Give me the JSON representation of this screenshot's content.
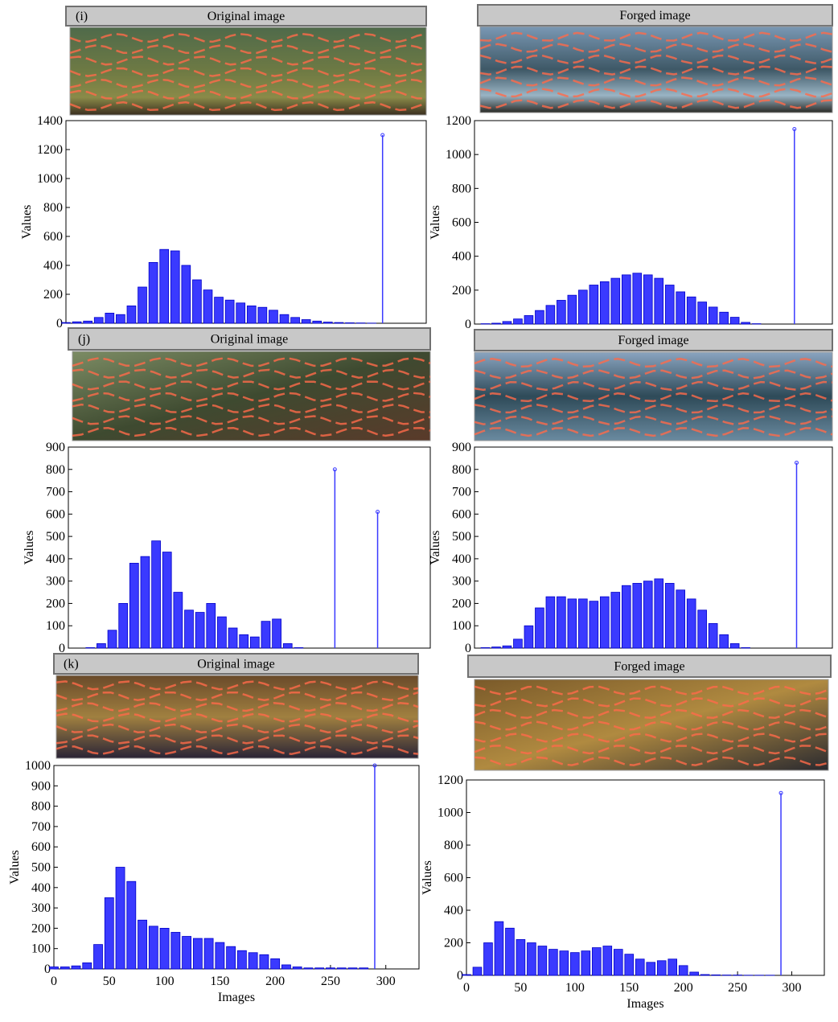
{
  "chart_data": [
    {
      "type": "bar",
      "panel_label": "(i)",
      "title": "Original image",
      "y_label": "Values",
      "xlim": [
        0,
        330
      ],
      "ylim": [
        0,
        1400
      ],
      "yticks": [
        0,
        200,
        400,
        600,
        800,
        1000,
        1200,
        1400
      ],
      "x": [
        0,
        10,
        20,
        30,
        40,
        50,
        60,
        70,
        80,
        90,
        100,
        110,
        120,
        130,
        140,
        150,
        160,
        170,
        180,
        190,
        200,
        210,
        220,
        230,
        240,
        250,
        260,
        270,
        280
      ],
      "values": [
        5,
        10,
        15,
        40,
        70,
        60,
        120,
        250,
        420,
        510,
        500,
        400,
        300,
        230,
        180,
        160,
        140,
        120,
        110,
        90,
        60,
        40,
        25,
        15,
        8,
        5,
        3,
        2,
        1
      ],
      "spike_x": [
        290
      ],
      "spike_values": [
        1300
      ],
      "color": "#3a3aff"
    },
    {
      "type": "bar",
      "title": "Forged image",
      "y_label": "Values",
      "xlim": [
        0,
        330
      ],
      "ylim": [
        0,
        1200
      ],
      "yticks": [
        0,
        200,
        400,
        600,
        800,
        1000,
        1200
      ],
      "x": [
        0,
        10,
        20,
        30,
        40,
        50,
        60,
        70,
        80,
        90,
        100,
        110,
        120,
        130,
        140,
        150,
        160,
        170,
        180,
        190,
        200,
        210,
        220,
        230,
        240,
        250,
        260,
        270,
        280
      ],
      "values": [
        0,
        2,
        5,
        15,
        30,
        50,
        80,
        110,
        140,
        170,
        200,
        230,
        250,
        270,
        290,
        300,
        290,
        270,
        230,
        190,
        160,
        130,
        100,
        70,
        40,
        10,
        2,
        0,
        0
      ],
      "spike_x": [
        295
      ],
      "spike_values": [
        1150
      ],
      "color": "#3a3aff"
    },
    {
      "type": "bar",
      "panel_label": "(j)",
      "title": "Original image",
      "y_label": "Values",
      "xlim": [
        0,
        330
      ],
      "ylim": [
        0,
        900
      ],
      "yticks": [
        0,
        100,
        200,
        300,
        400,
        500,
        600,
        700,
        800,
        900
      ],
      "x": [
        0,
        10,
        20,
        30,
        40,
        50,
        60,
        70,
        80,
        90,
        100,
        110,
        120,
        130,
        140,
        150,
        160,
        170,
        180,
        190,
        200,
        210,
        220,
        230
      ],
      "values": [
        0,
        0,
        2,
        20,
        80,
        200,
        380,
        410,
        480,
        430,
        250,
        170,
        160,
        200,
        140,
        90,
        60,
        50,
        120,
        130,
        20,
        2,
        0,
        0
      ],
      "spike_x": [
        243,
        282
      ],
      "spike_values": [
        800,
        610
      ],
      "color": "#3a3aff"
    },
    {
      "type": "bar",
      "title": "Forged image",
      "y_label": "Values",
      "xlim": [
        0,
        330
      ],
      "ylim": [
        0,
        900
      ],
      "yticks": [
        0,
        100,
        200,
        300,
        400,
        500,
        600,
        700,
        800,
        900
      ],
      "x": [
        0,
        10,
        20,
        30,
        40,
        50,
        60,
        70,
        80,
        90,
        100,
        110,
        120,
        130,
        140,
        150,
        160,
        170,
        180,
        190,
        200,
        210,
        220,
        230,
        240,
        250,
        260
      ],
      "values": [
        0,
        2,
        5,
        10,
        40,
        100,
        180,
        230,
        230,
        220,
        220,
        210,
        230,
        250,
        280,
        290,
        300,
        310,
        290,
        260,
        220,
        170,
        110,
        60,
        20,
        2,
        0
      ],
      "spike_x": [
        297
      ],
      "spike_values": [
        830
      ],
      "color": "#3a3aff"
    },
    {
      "type": "bar",
      "panel_label": "(k)",
      "title": "Original image",
      "y_label": "Values",
      "x_label": "Images",
      "xlim": [
        0,
        330
      ],
      "xticks": [
        0,
        50,
        100,
        150,
        200,
        250,
        300
      ],
      "ylim": [
        0,
        1000
      ],
      "yticks": [
        0,
        100,
        200,
        300,
        400,
        500,
        600,
        700,
        800,
        900,
        1000
      ],
      "x": [
        0,
        10,
        20,
        30,
        40,
        50,
        60,
        70,
        80,
        90,
        100,
        110,
        120,
        130,
        140,
        150,
        160,
        170,
        180,
        190,
        200,
        210,
        220,
        230,
        240,
        250,
        260,
        270,
        280
      ],
      "values": [
        10,
        10,
        15,
        30,
        120,
        350,
        500,
        430,
        240,
        210,
        200,
        180,
        160,
        150,
        150,
        130,
        110,
        90,
        80,
        70,
        50,
        20,
        10,
        5,
        5,
        5,
        5,
        5,
        5
      ],
      "spike_x": [
        290
      ],
      "spike_values": [
        1000
      ],
      "color": "#3a3aff"
    },
    {
      "type": "bar",
      "title": "Forged image",
      "y_label": "Values",
      "x_label": "Images",
      "xlim": [
        0,
        330
      ],
      "xticks": [
        0,
        50,
        100,
        150,
        200,
        250,
        300
      ],
      "ylim": [
        0,
        1200
      ],
      "yticks": [
        0,
        200,
        400,
        600,
        800,
        1000,
        1200
      ],
      "x": [
        0,
        10,
        20,
        30,
        40,
        50,
        60,
        70,
        80,
        90,
        100,
        110,
        120,
        130,
        140,
        150,
        160,
        170,
        180,
        190,
        200,
        210,
        220,
        230,
        240,
        250,
        260,
        270,
        280
      ],
      "values": [
        5,
        50,
        200,
        330,
        290,
        220,
        200,
        180,
        160,
        150,
        140,
        150,
        170,
        180,
        160,
        130,
        100,
        80,
        90,
        100,
        60,
        20,
        5,
        3,
        2,
        2,
        1,
        1,
        1
      ],
      "spike_x": [
        290
      ],
      "spike_values": [
        1120
      ],
      "color": "#3a3aff"
    }
  ]
}
